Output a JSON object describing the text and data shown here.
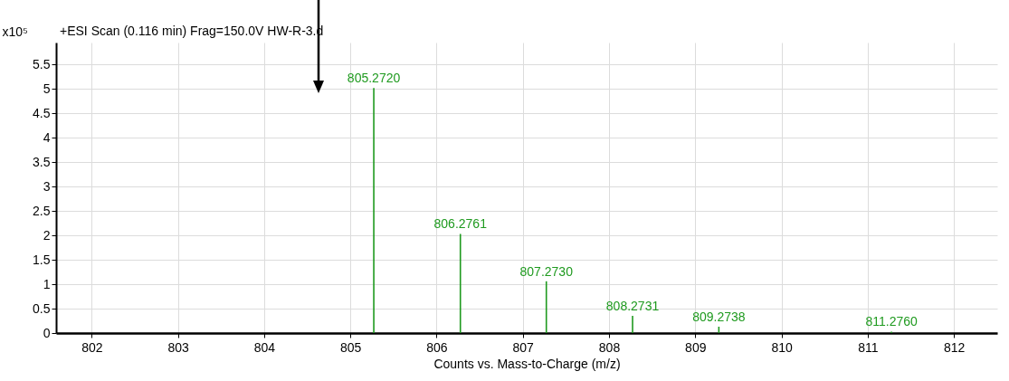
{
  "chart_data": {
    "type": "bar",
    "title": "+ESI Scan (0.116 min) Frag=150.0V HW-R-3.d",
    "xlabel": "Counts vs. Mass-to-Charge (m/z)",
    "ylabel": "x10⁵",
    "x": [
      805.272,
      806.2761,
      807.273,
      808.2731,
      809.2738,
      811.276
    ],
    "values": [
      5.02,
      2.03,
      1.06,
      0.35,
      0.13,
      0.03
    ],
    "annotations": [
      {
        "text": "805.2720",
        "x": 805.272,
        "y": 5.02
      },
      {
        "text": "806.2761",
        "x": 806.2761,
        "y": 2.03
      },
      {
        "text": "807.2730",
        "x": 807.273,
        "y": 1.06
      },
      {
        "text": "808.2731",
        "x": 808.2731,
        "y": 0.35
      },
      {
        "text": "809.2738",
        "x": 809.2738,
        "y": 0.13
      },
      {
        "text": "811.2760",
        "x": 811.276,
        "y": 0.03
      }
    ],
    "color": "#1f9a1f",
    "xlim": [
      801.64,
      812.45
    ],
    "xticks": [
      802,
      803,
      804,
      805,
      806,
      807,
      808,
      809,
      810,
      811,
      812
    ],
    "ylim": [
      0,
      5.95
    ],
    "yticks": [
      0,
      0.5,
      1,
      1.5,
      2,
      2.5,
      3,
      3.5,
      4,
      4.5,
      5,
      5.5
    ],
    "grid": true
  }
}
